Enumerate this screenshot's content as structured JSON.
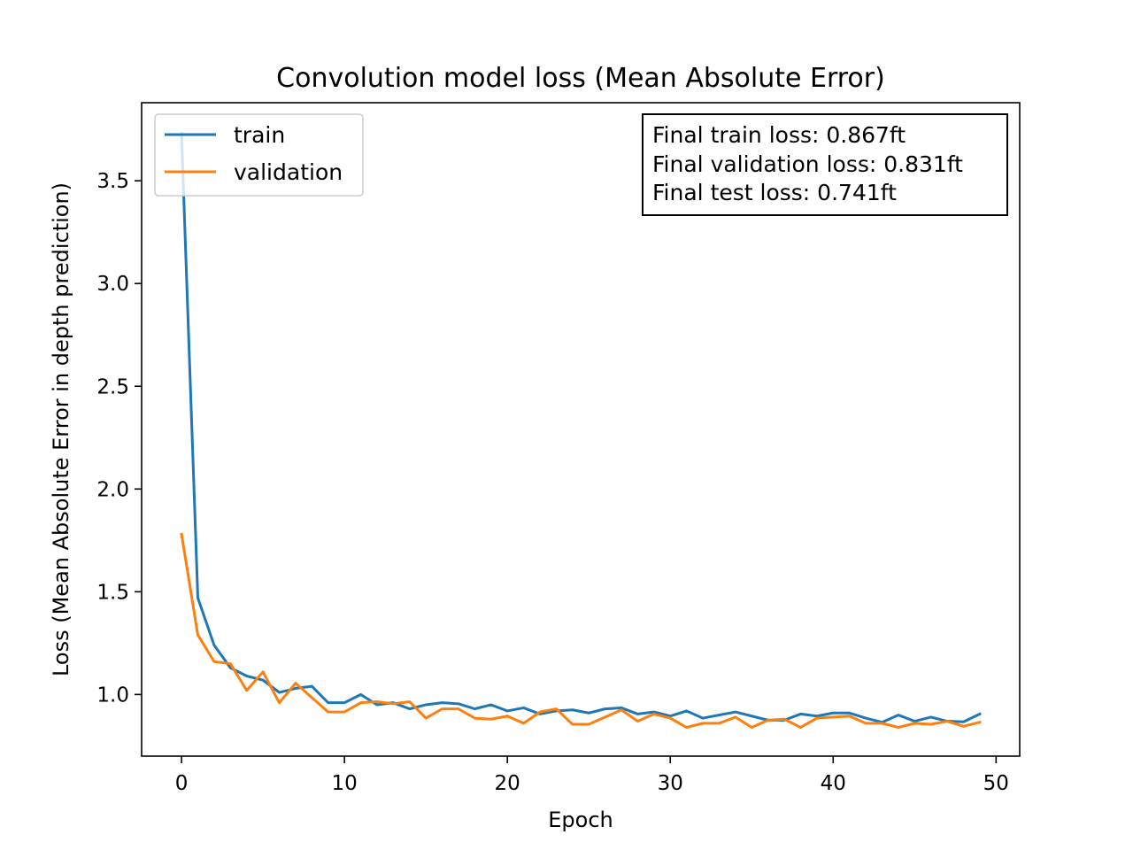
{
  "chart_data": {
    "type": "line",
    "title": "Convolution model loss (Mean Absolute Error)",
    "xlabel": "Epoch",
    "ylabel": "Loss (Mean Absolute Error in depth prediction)",
    "xlim": [
      -2.45,
      51.45
    ],
    "ylim": [
      0.7,
      3.88
    ],
    "xticks": [
      0,
      10,
      20,
      30,
      40,
      50
    ],
    "xtick_labels": [
      "0",
      "10",
      "20",
      "30",
      "40",
      "50"
    ],
    "yticks": [
      1.0,
      1.5,
      2.0,
      2.5,
      3.0,
      3.5
    ],
    "ytick_labels": [
      "1.0",
      "1.5",
      "2.0",
      "2.5",
      "3.0",
      "3.5"
    ],
    "grid": false,
    "legend_position": "upper-left",
    "series": [
      {
        "name": "train",
        "color": "#1f77b4",
        "x": [
          0,
          1,
          2,
          3,
          4,
          5,
          6,
          7,
          8,
          9,
          10,
          11,
          12,
          13,
          14,
          15,
          16,
          17,
          18,
          19,
          20,
          21,
          22,
          23,
          24,
          25,
          26,
          27,
          28,
          29,
          30,
          31,
          32,
          33,
          34,
          35,
          36,
          37,
          38,
          39,
          40,
          41,
          42,
          43,
          44,
          45,
          46,
          47,
          48,
          49
        ],
        "values": [
          3.73,
          1.47,
          1.24,
          1.13,
          1.09,
          1.07,
          1.01,
          1.03,
          1.04,
          0.96,
          0.96,
          1.0,
          0.95,
          0.96,
          0.93,
          0.95,
          0.96,
          0.955,
          0.93,
          0.95,
          0.92,
          0.935,
          0.905,
          0.92,
          0.925,
          0.91,
          0.93,
          0.935,
          0.905,
          0.915,
          0.895,
          0.92,
          0.885,
          0.9,
          0.915,
          0.895,
          0.875,
          0.875,
          0.905,
          0.895,
          0.91,
          0.91,
          0.885,
          0.865,
          0.9,
          0.87,
          0.89,
          0.87,
          0.867,
          0.905
        ]
      },
      {
        "name": "validation",
        "color": "#ff7f0e",
        "x": [
          0,
          1,
          2,
          3,
          4,
          5,
          6,
          7,
          8,
          9,
          10,
          11,
          12,
          13,
          14,
          15,
          16,
          17,
          18,
          19,
          20,
          21,
          22,
          23,
          24,
          25,
          26,
          27,
          28,
          29,
          30,
          31,
          32,
          33,
          34,
          35,
          36,
          37,
          38,
          39,
          40,
          41,
          42,
          43,
          44,
          45,
          46,
          47,
          48,
          49
        ],
        "values": [
          1.78,
          1.29,
          1.16,
          1.15,
          1.02,
          1.11,
          0.96,
          1.055,
          0.985,
          0.915,
          0.915,
          0.96,
          0.965,
          0.955,
          0.965,
          0.885,
          0.93,
          0.93,
          0.885,
          0.88,
          0.895,
          0.86,
          0.915,
          0.93,
          0.855,
          0.855,
          0.89,
          0.925,
          0.87,
          0.905,
          0.885,
          0.84,
          0.86,
          0.86,
          0.89,
          0.84,
          0.875,
          0.88,
          0.84,
          0.885,
          0.89,
          0.895,
          0.86,
          0.86,
          0.84,
          0.86,
          0.855,
          0.87,
          0.845,
          0.865
        ]
      }
    ],
    "annotations": [
      "Final train loss: 0.867ft",
      "Final validation loss: 0.831ft",
      "Final test loss: 0.741ft"
    ]
  }
}
